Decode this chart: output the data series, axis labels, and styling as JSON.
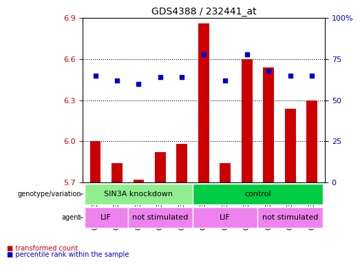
{
  "title": "GDS4388 / 232441_at",
  "samples": [
    "GSM873559",
    "GSM873563",
    "GSM873555",
    "GSM873558",
    "GSM873562",
    "GSM873554",
    "GSM873557",
    "GSM873561",
    "GSM873553",
    "GSM873556",
    "GSM873560"
  ],
  "bar_values": [
    6.0,
    5.84,
    5.72,
    5.92,
    5.98,
    6.86,
    5.84,
    6.6,
    6.54,
    6.24,
    6.3
  ],
  "dot_values": [
    65,
    62,
    60,
    64,
    64,
    78,
    62,
    78,
    68,
    65,
    65
  ],
  "ylim_left": [
    5.7,
    6.9
  ],
  "ylim_right": [
    0,
    100
  ],
  "yticks_left": [
    5.7,
    6.0,
    6.3,
    6.6,
    6.9
  ],
  "yticks_right": [
    0,
    25,
    50,
    75,
    100
  ],
  "bar_color": "#cc0000",
  "dot_color": "#0000cc",
  "bar_bottom": 5.7,
  "groups": [
    {
      "label": "SIN3A knockdown",
      "start": 0,
      "end": 5,
      "color": "#90ee90"
    },
    {
      "label": "control",
      "start": 5,
      "end": 11,
      "color": "#00cc44"
    }
  ],
  "agents": [
    {
      "label": "LIF",
      "start": 0,
      "end": 2,
      "color": "#ee82ee"
    },
    {
      "label": "not stimulated",
      "start": 2,
      "end": 5,
      "color": "#ee82ee"
    },
    {
      "label": "LIF",
      "start": 5,
      "end": 8,
      "color": "#ee82ee"
    },
    {
      "label": "not stimulated",
      "start": 8,
      "end": 11,
      "color": "#ee82ee"
    }
  ],
  "legend_items": [
    {
      "label": "transformed count",
      "color": "#cc0000",
      "marker": "s"
    },
    {
      "label": "percentile rank within the sample",
      "color": "#0000cc",
      "marker": "s"
    }
  ],
  "xlabel_genotype": "genotype/variation",
  "xlabel_agent": "agent",
  "grid_color": "#000000",
  "bg_color": "#ffffff",
  "tick_color_left": "#cc0000",
  "tick_color_right": "#0000cc"
}
